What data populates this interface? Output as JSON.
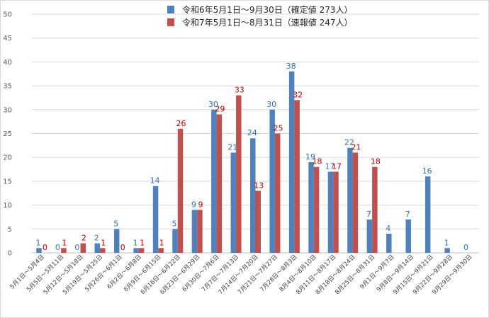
{
  "chart_data": {
    "type": "bar",
    "title": "",
    "xlabel": "",
    "ylabel": "",
    "ylim": [
      0,
      50
    ],
    "yticks": [
      0,
      5,
      10,
      15,
      20,
      25,
      30,
      35,
      40,
      45,
      50
    ],
    "grid": true,
    "legend_position": "top",
    "categories": [
      "5月1日～5月4日",
      "5月5日～5月11日",
      "5月12日～5月18日",
      "5月19日～5月25日",
      "5月26日～6月1日",
      "6月2日～6月8日",
      "6月9日～6月15日",
      "6月16日～6月22日",
      "6月23日～6月29日",
      "6月30日～7月6日",
      "7月7日～7月13日",
      "7月14日～7月20日",
      "7月21日～7月27日",
      "7月28日～8月3日",
      "8月4日～8月10日",
      "8月11日～8月17日",
      "8月18日～8月24日",
      "8月25日～8月31日",
      "9月1日～9月7日",
      "9月8日～9月14日",
      "9月15日～9月21日",
      "9月22日～9月28日",
      "9月29日～9月30日"
    ],
    "series": [
      {
        "name": "令和6年5月1日～9月30日（確定値 273人）",
        "color": "#4f81bd",
        "label_color": "#2e75b6",
        "values": [
          1,
          0,
          0,
          2,
          5,
          1,
          14,
          5,
          9,
          30,
          21,
          24,
          30,
          38,
          19,
          17,
          22,
          7,
          4,
          7,
          16,
          1,
          0
        ]
      },
      {
        "name": "令和7年5月1日～8月31日（速報値 247人）",
        "color": "#c0504d",
        "label_color": "#c00000",
        "values": [
          0,
          1,
          2,
          1,
          0,
          1,
          1,
          26,
          9,
          29,
          33,
          13,
          25,
          32,
          18,
          17,
          21,
          18,
          null,
          null,
          null,
          null,
          null
        ]
      }
    ]
  }
}
